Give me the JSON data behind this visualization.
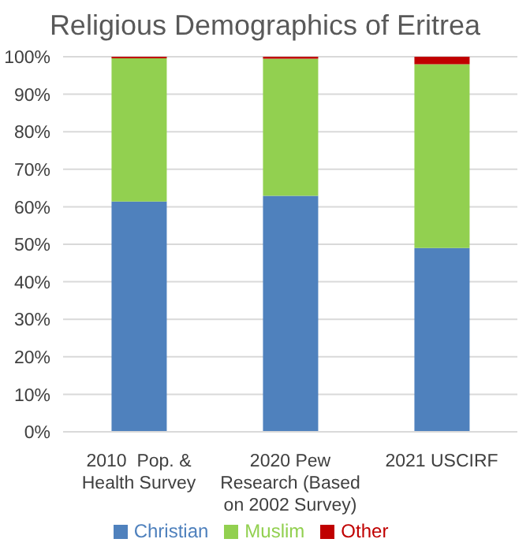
{
  "chart_data": {
    "type": "bar",
    "title": "Religious Demographics of Eritrea",
    "categories": [
      "2010  Pop. & Health Survey",
      "2020 Pew Research (Based on 2002 Survey)",
      "2021 USCIRF"
    ],
    "stacked": true,
    "series": [
      {
        "name": "Christian",
        "color": "#4f81bd",
        "values": [
          61.4,
          62.9,
          49
        ]
      },
      {
        "name": "Muslim",
        "color": "#92d050",
        "values": [
          38.2,
          36.6,
          49
        ]
      },
      {
        "name": "Other",
        "color": "#c00000",
        "values": [
          0.4,
          0.5,
          2
        ]
      }
    ],
    "ylim": [
      0,
      100
    ],
    "yticks": [
      {
        "value": 0,
        "label": "0%"
      },
      {
        "value": 10,
        "label": "10%"
      },
      {
        "value": 20,
        "label": "20%"
      },
      {
        "value": 30,
        "label": "30%"
      },
      {
        "value": 40,
        "label": "40%"
      },
      {
        "value": 50,
        "label": "50%"
      },
      {
        "value": 60,
        "label": "60%"
      },
      {
        "value": 70,
        "label": "70%"
      },
      {
        "value": 80,
        "label": "80%"
      },
      {
        "value": 90,
        "label": "90%"
      },
      {
        "value": 100,
        "label": "100%"
      }
    ],
    "grid": "y",
    "legend": "bottom"
  }
}
